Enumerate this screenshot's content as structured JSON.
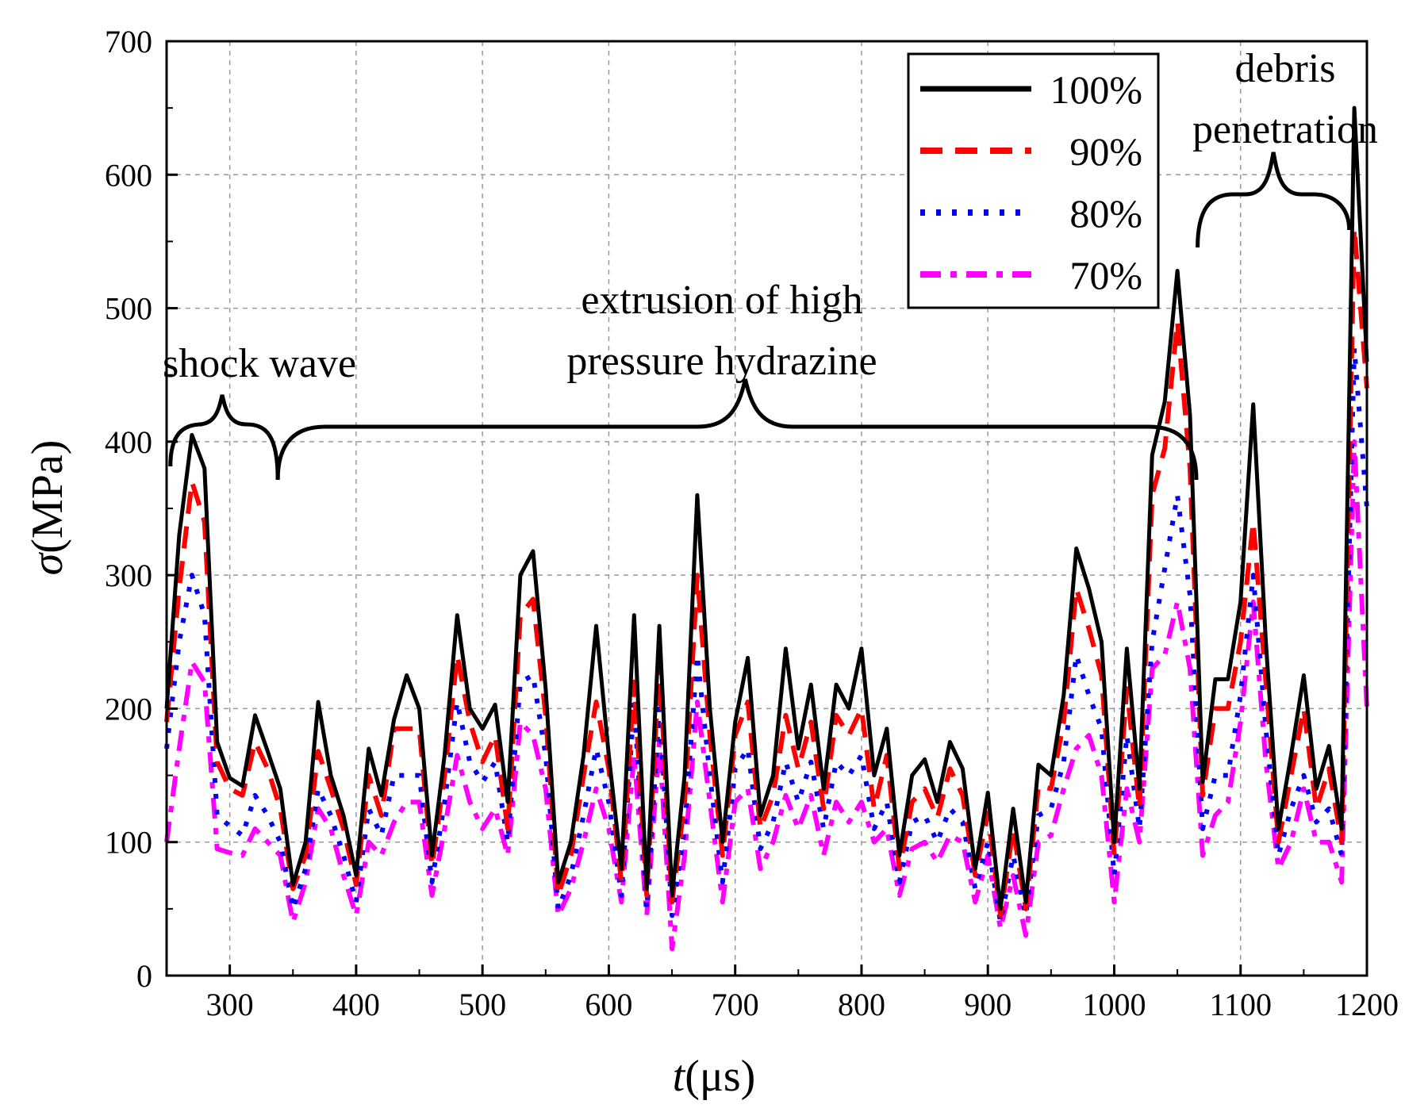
{
  "chart_data": {
    "type": "line",
    "xlabel_main": "t",
    "xlabel_unit": "(μs)",
    "ylabel_main": "σ",
    "ylabel_unit": "(MPa)",
    "xlim": [
      250,
      1200
    ],
    "ylim": [
      0,
      700
    ],
    "x_ticks": [
      "300",
      "400",
      "500",
      "600",
      "700",
      "800",
      "900",
      "1000",
      "1100",
      "1200"
    ],
    "y_ticks": [
      "0",
      "100",
      "200",
      "300",
      "400",
      "500",
      "600",
      "700"
    ],
    "grid": true,
    "legend_position": "top-right",
    "x": [
      250,
      260,
      270,
      280,
      290,
      300,
      310,
      320,
      330,
      340,
      350,
      360,
      370,
      380,
      390,
      400,
      410,
      420,
      430,
      440,
      450,
      460,
      470,
      480,
      490,
      500,
      510,
      520,
      530,
      540,
      550,
      560,
      570,
      580,
      590,
      600,
      610,
      620,
      630,
      640,
      650,
      660,
      670,
      680,
      690,
      700,
      710,
      720,
      730,
      740,
      750,
      760,
      770,
      780,
      790,
      800,
      810,
      820,
      830,
      840,
      850,
      860,
      870,
      880,
      890,
      900,
      910,
      920,
      930,
      940,
      950,
      960,
      970,
      980,
      990,
      1000,
      1010,
      1020,
      1030,
      1040,
      1050,
      1060,
      1070,
      1080,
      1090,
      1100,
      1110,
      1120,
      1130,
      1140,
      1150,
      1160,
      1170,
      1180,
      1190,
      1200
    ],
    "series": [
      {
        "name": "100%",
        "color": "#000000",
        "dash": "solid",
        "values": [
          200,
          330,
          405,
          380,
          175,
          148,
          142,
          195,
          168,
          140,
          68,
          100,
          205,
          150,
          120,
          75,
          170,
          135,
          192,
          225,
          200,
          90,
          165,
          270,
          200,
          185,
          203,
          130,
          300,
          318,
          215,
          70,
          100,
          165,
          262,
          165,
          80,
          270,
          65,
          262,
          60,
          150,
          360,
          200,
          100,
          190,
          238,
          120,
          150,
          245,
          170,
          218,
          140,
          218,
          200,
          245,
          150,
          185,
          90,
          150,
          162,
          130,
          175,
          155,
          80,
          137,
          50,
          125,
          55,
          158,
          150,
          210,
          320,
          290,
          250,
          100,
          245,
          140,
          390,
          430,
          528,
          420,
          145,
          222,
          222,
          280,
          428,
          250,
          110,
          165,
          225,
          140,
          172,
          110,
          650,
          460
        ]
      },
      {
        "name": "90%",
        "color": "#ff0000",
        "dash": "long-dash",
        "values": [
          190,
          290,
          370,
          340,
          160,
          140,
          135,
          175,
          155,
          125,
          65,
          90,
          168,
          140,
          110,
          68,
          150,
          120,
          185,
          185,
          185,
          82,
          150,
          240,
          190,
          160,
          180,
          110,
          270,
          282,
          195,
          60,
          90,
          150,
          205,
          155,
          70,
          220,
          60,
          235,
          55,
          130,
          300,
          180,
          90,
          180,
          205,
          110,
          135,
          195,
          155,
          190,
          125,
          195,
          180,
          200,
          125,
          165,
          80,
          130,
          140,
          118,
          155,
          135,
          75,
          122,
          45,
          110,
          50,
          142,
          140,
          190,
          290,
          260,
          225,
          90,
          215,
          125,
          360,
          395,
          490,
          380,
          135,
          200,
          200,
          250,
          340,
          220,
          100,
          150,
          200,
          125,
          155,
          100,
          560,
          440
        ]
      },
      {
        "name": "80%",
        "color": "#0000ff",
        "dash": "dotted",
        "values": [
          170,
          250,
          300,
          270,
          120,
          112,
          105,
          135,
          120,
          100,
          50,
          80,
          140,
          120,
          90,
          55,
          125,
          105,
          150,
          150,
          150,
          70,
          130,
          205,
          160,
          145,
          160,
          100,
          220,
          225,
          165,
          50,
          75,
          120,
          170,
          130,
          60,
          205,
          50,
          200,
          45,
          110,
          240,
          150,
          70,
          155,
          170,
          95,
          115,
          160,
          130,
          160,
          110,
          160,
          150,
          165,
          110,
          130,
          70,
          115,
          120,
          100,
          125,
          115,
          65,
          100,
          40,
          90,
          45,
          120,
          125,
          160,
          240,
          210,
          185,
          75,
          180,
          110,
          250,
          305,
          360,
          285,
          110,
          150,
          150,
          210,
          300,
          185,
          90,
          125,
          150,
          115,
          125,
          90,
          470,
          350
        ]
      },
      {
        "name": "70%",
        "color": "#ff00ff",
        "dash": "dash-dot",
        "values": [
          100,
          170,
          235,
          220,
          95,
          92,
          90,
          110,
          100,
          90,
          40,
          70,
          125,
          110,
          75,
          45,
          100,
          90,
          115,
          130,
          130,
          60,
          110,
          165,
          130,
          110,
          125,
          90,
          190,
          180,
          140,
          45,
          65,
          100,
          140,
          110,
          55,
          165,
          45,
          175,
          20,
          90,
          205,
          130,
          55,
          130,
          140,
          80,
          100,
          135,
          110,
          135,
          90,
          130,
          115,
          130,
          100,
          110,
          60,
          95,
          100,
          85,
          105,
          100,
          55,
          90,
          35,
          75,
          30,
          100,
          105,
          140,
          170,
          180,
          150,
          55,
          140,
          100,
          230,
          240,
          280,
          230,
          90,
          120,
          130,
          190,
          280,
          160,
          80,
          100,
          140,
          100,
          100,
          70,
          400,
          200
        ]
      }
    ],
    "annotations": [
      {
        "text": "shock wave"
      },
      {
        "text_line1": "extrusion of high",
        "text_line2": "pressure hydrazine"
      },
      {
        "text_line1": "debris",
        "text_line2": "penetration"
      }
    ]
  }
}
